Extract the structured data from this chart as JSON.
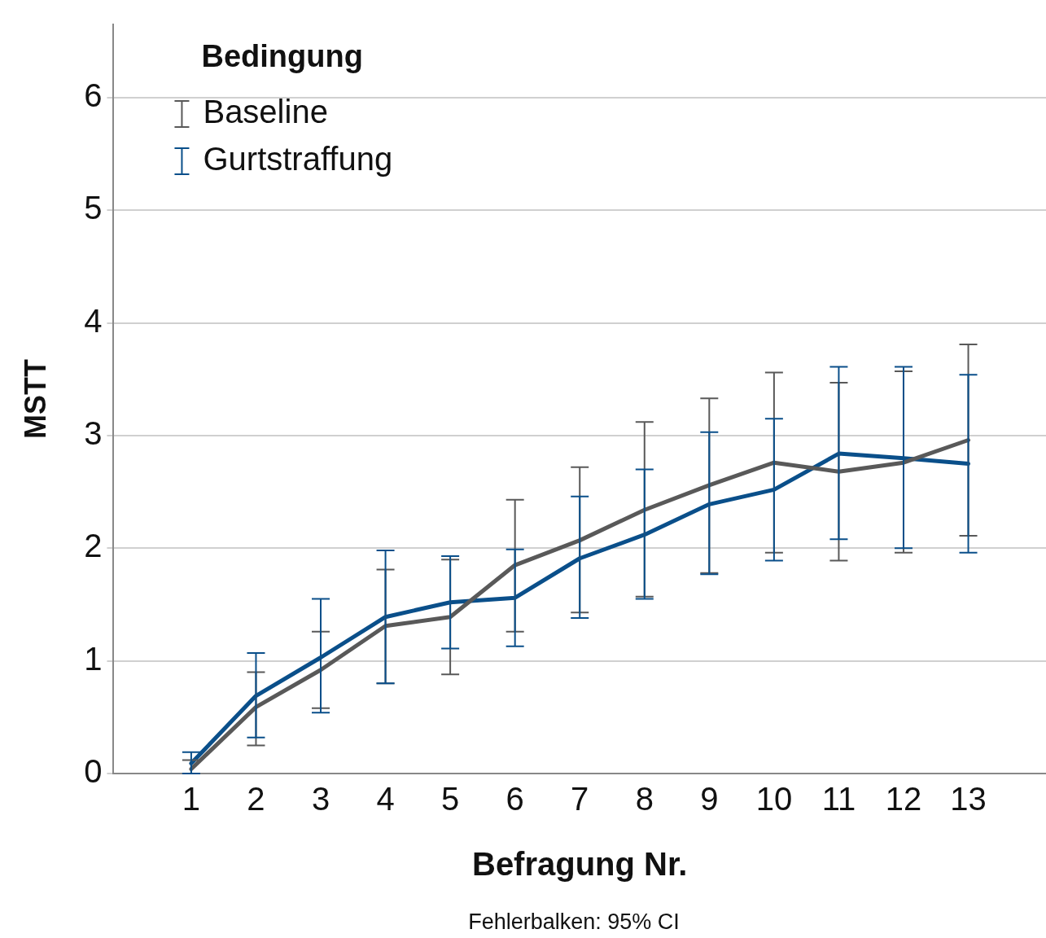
{
  "chart_data": {
    "type": "line",
    "xlabel": "Befragung Nr.",
    "ylabel": "MSTT",
    "legend_title": "Bedingung",
    "legend": "top left",
    "grid": "y",
    "marker": "none",
    "line_style": "solid",
    "x": [
      1,
      2,
      3,
      4,
      5,
      6,
      7,
      8,
      9,
      10,
      11,
      12,
      13
    ],
    "xlim": [
      -0.2,
      14.2
    ],
    "xticks": [
      1,
      2,
      3,
      4,
      5,
      6,
      7,
      8,
      9,
      10,
      11,
      12,
      13
    ],
    "ylim": [
      0,
      6.65
    ],
    "yticks": [
      0,
      1,
      2,
      3,
      4,
      5,
      6
    ],
    "annotations": [
      "Fehlerbalken: 95% CI"
    ],
    "series": [
      {
        "name": "Baseline",
        "color": "#595959",
        "values": [
          0.04,
          0.59,
          0.92,
          1.31,
          1.39,
          1.85,
          2.07,
          2.34,
          2.56,
          2.76,
          2.68,
          2.76,
          2.96
        ],
        "errors": [
          [
            0,
            0.12
          ],
          [
            0.25,
            0.9
          ],
          [
            0.58,
            1.26
          ],
          [
            0.8,
            1.81
          ],
          [
            0.88,
            1.9
          ],
          [
            1.26,
            2.43
          ],
          [
            1.43,
            2.72
          ],
          [
            1.57,
            3.12
          ],
          [
            1.78,
            3.33
          ],
          [
            1.96,
            3.56
          ],
          [
            1.89,
            3.47
          ],
          [
            1.96,
            3.57
          ],
          [
            2.11,
            3.81
          ]
        ]
      },
      {
        "name": "Gurtstraffung",
        "color": "#0a4f8a",
        "values": [
          0.09,
          0.69,
          1.03,
          1.39,
          1.52,
          1.56,
          1.91,
          2.12,
          2.39,
          2.52,
          2.84,
          2.8,
          2.75
        ],
        "errors": [
          [
            0,
            0.19
          ],
          [
            0.32,
            1.07
          ],
          [
            0.54,
            1.55
          ],
          [
            0.8,
            1.98
          ],
          [
            1.11,
            1.93
          ],
          [
            1.13,
            1.99
          ],
          [
            1.38,
            2.46
          ],
          [
            1.55,
            2.7
          ],
          [
            1.77,
            3.03
          ],
          [
            1.89,
            3.15
          ],
          [
            2.08,
            3.61
          ],
          [
            2.0,
            3.61
          ],
          [
            1.96,
            3.54
          ]
        ]
      }
    ]
  }
}
